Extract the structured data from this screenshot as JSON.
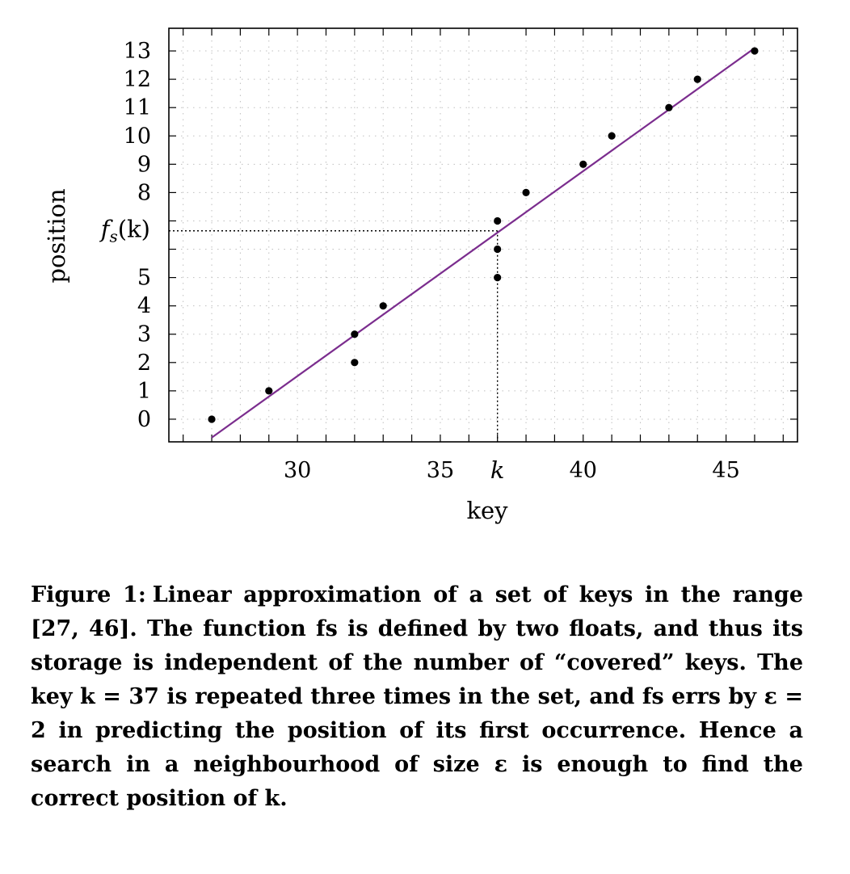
{
  "chart_data": {
    "type": "scatter",
    "xlabel": "key",
    "ylabel": "position",
    "xlim": [
      25.5,
      47.5
    ],
    "ylim": [
      -0.8,
      13.8
    ],
    "x_ticks": [
      30,
      35,
      40,
      45
    ],
    "x_minor_ticks": [
      26,
      27,
      28,
      29,
      31,
      32,
      33,
      34,
      36,
      38,
      39,
      41,
      42,
      43,
      44,
      46,
      47
    ],
    "y_ticks": [
      0,
      1,
      2,
      3,
      4,
      5,
      8,
      9,
      10,
      11,
      12,
      13
    ],
    "y_minor_ticks": [
      6,
      7
    ],
    "grid": true,
    "points": {
      "x": [
        27,
        29,
        32,
        32,
        33,
        37,
        37,
        37,
        38,
        40,
        41,
        43,
        44,
        46
      ],
      "y": [
        0,
        1,
        2,
        3,
        4,
        5,
        6,
        7,
        8,
        9,
        10,
        11,
        12,
        13
      ]
    },
    "fit_line": {
      "x": [
        27,
        46
      ],
      "y": [
        -0.65,
        13.1
      ]
    },
    "highlight_key": {
      "x": 37,
      "y": 6.65,
      "x_label": "k",
      "y_label_main": "f",
      "y_label_sub": "s",
      "y_label_arg": "(k)"
    },
    "colors": {
      "line": "#7b2d8e",
      "points": "#000000",
      "grid": "#bfbfbf"
    }
  },
  "caption": {
    "label": "Figure 1:",
    "text": "Linear approximation of a set of keys in the range [27, 46]. The function fs is defined by two floats, and thus its storage is independent of the number of “covered” keys. The key k = 37 is repeated three times in the set, and fs errs by ε = 2 in predicting the position of its first occurrence. Hence a search in a neighbourhood of size ε is enough to find the correct position of k."
  }
}
